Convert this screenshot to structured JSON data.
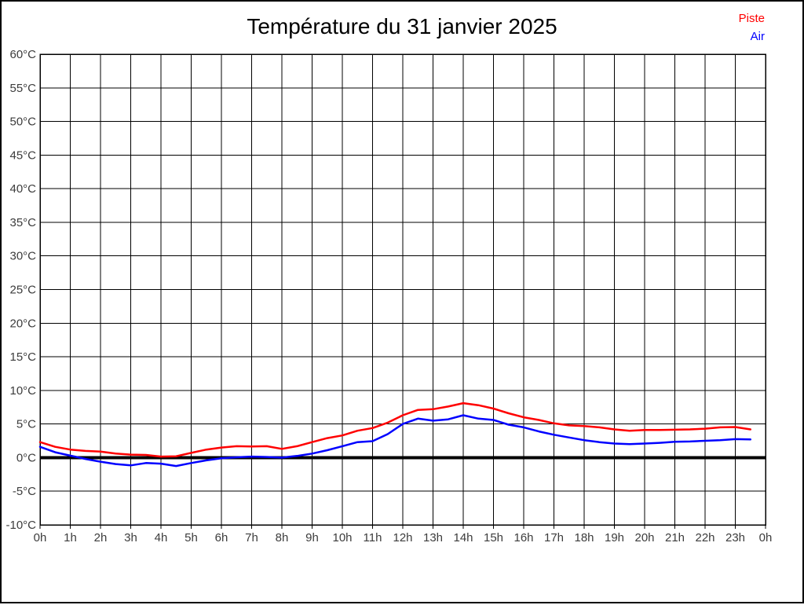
{
  "title": "Température du 31 janvier 2025",
  "legend": {
    "items": [
      {
        "label": "Piste",
        "color": "#ff0000"
      },
      {
        "label": "Air",
        "color": "#0000ff"
      }
    ]
  },
  "chart_data": {
    "type": "line",
    "title": "Température du 31 janvier 2025",
    "xlabel": "",
    "ylabel": "",
    "x_unit": "hour",
    "xlim": [
      0,
      24
    ],
    "ylim": [
      -10,
      60
    ],
    "ytick_step": 5,
    "grid": true,
    "zero_line": true,
    "legend_position": "top-right",
    "yticks": [
      "60°C",
      "55°C",
      "50°C",
      "45°C",
      "40°C",
      "35°C",
      "30°C",
      "25°C",
      "20°C",
      "15°C",
      "10°C",
      "5°C",
      "0°C",
      "-5°C",
      "-10°C"
    ],
    "xticks": [
      "0h",
      "1h",
      "2h",
      "3h",
      "4h",
      "5h",
      "6h",
      "7h",
      "8h",
      "9h",
      "10h",
      "11h",
      "12h",
      "13h",
      "14h",
      "15h",
      "16h",
      "17h",
      "18h",
      "19h",
      "20h",
      "21h",
      "22h",
      "23h",
      "0h"
    ],
    "x": [
      0,
      0.5,
      1,
      1.5,
      2,
      2.5,
      3,
      3.5,
      4,
      4.5,
      5,
      5.5,
      6,
      6.5,
      7,
      7.5,
      8,
      8.5,
      9,
      9.5,
      10,
      10.5,
      11,
      11.5,
      12,
      12.5,
      13,
      13.5,
      14,
      14.5,
      15,
      15.5,
      16,
      16.5,
      17,
      17.5,
      18,
      18.5,
      19,
      19.5,
      20,
      20.5,
      21,
      21.5,
      22,
      22.5,
      23,
      23.5
    ],
    "series": [
      {
        "name": "Piste",
        "color": "#ff0000",
        "values": [
          2.3,
          1.6,
          1.2,
          1.0,
          0.9,
          0.6,
          0.45,
          0.4,
          0.15,
          0.2,
          0.7,
          1.2,
          1.5,
          1.7,
          1.65,
          1.7,
          1.3,
          1.7,
          2.3,
          2.9,
          3.3,
          4.0,
          4.4,
          5.2,
          6.3,
          7.1,
          7.2,
          7.6,
          8.1,
          7.8,
          7.3,
          6.6,
          6.0,
          5.6,
          5.1,
          4.8,
          4.7,
          4.5,
          4.2,
          4.0,
          4.1,
          4.1,
          4.15,
          4.2,
          4.3,
          4.5,
          4.55,
          4.2
        ]
      },
      {
        "name": "Air",
        "color": "#0000ff",
        "values": [
          1.6,
          0.8,
          0.3,
          -0.2,
          -0.6,
          -0.95,
          -1.15,
          -0.8,
          -0.9,
          -1.25,
          -0.8,
          -0.4,
          -0.1,
          0.05,
          0.15,
          0.1,
          0.0,
          0.25,
          0.6,
          1.1,
          1.7,
          2.3,
          2.45,
          3.5,
          5.0,
          5.8,
          5.5,
          5.7,
          6.3,
          5.8,
          5.6,
          4.9,
          4.5,
          3.9,
          3.4,
          3.0,
          2.6,
          2.3,
          2.1,
          2.0,
          2.1,
          2.2,
          2.35,
          2.4,
          2.5,
          2.6,
          2.75,
          2.7
        ]
      }
    ]
  },
  "colors": {
    "axis": "#000000",
    "label": "#3c3c3c",
    "background": "#ffffff"
  }
}
